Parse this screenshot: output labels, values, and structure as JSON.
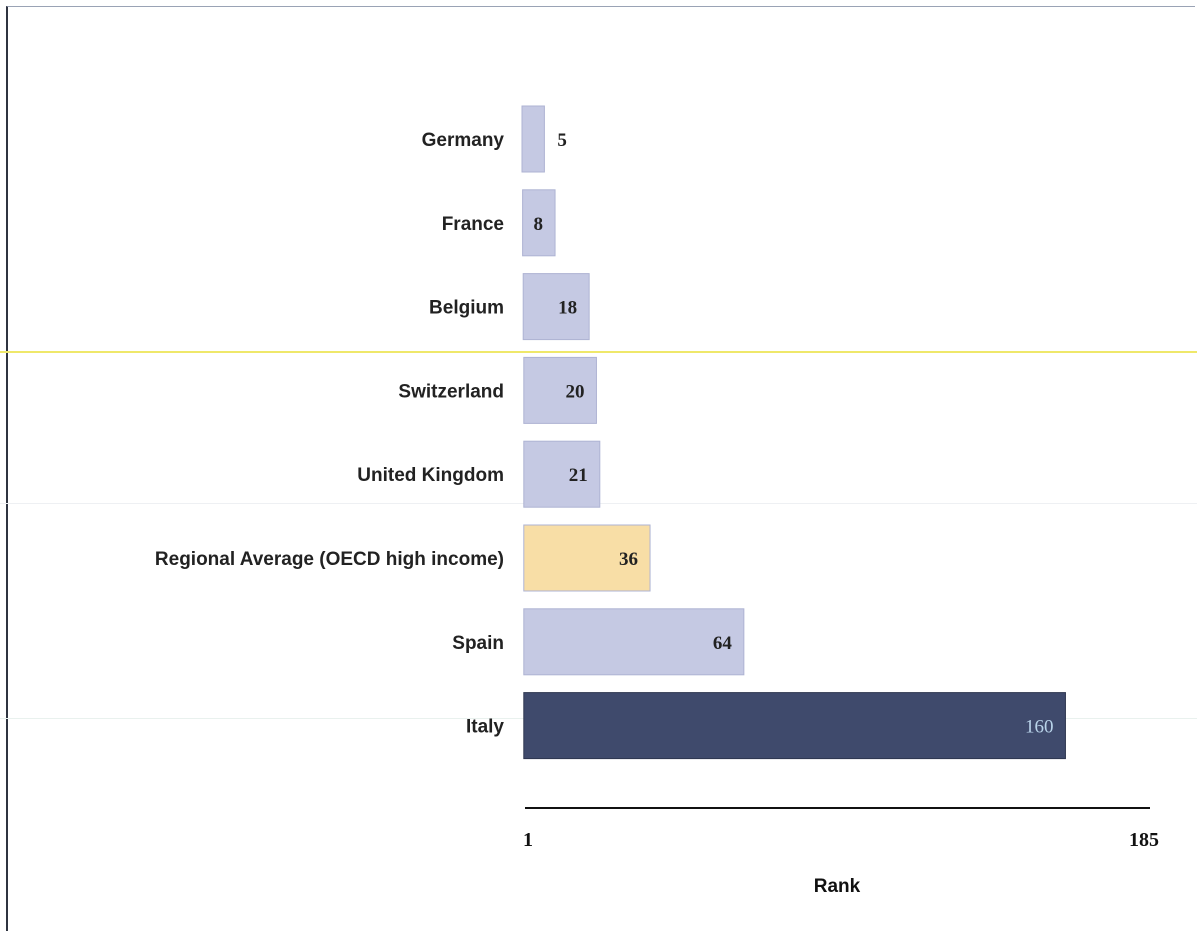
{
  "chart_data": {
    "type": "bar",
    "orientation": "horizontal",
    "categories": [
      "Germany",
      "France",
      "Belgium",
      "Switzerland",
      "United Kingdom",
      "Regional Average (OECD high income)",
      "Spain",
      "Italy"
    ],
    "values": [
      5,
      8,
      18,
      20,
      21,
      36,
      64,
      160
    ],
    "value_labels": [
      "5",
      "8",
      "18",
      "20",
      "21",
      "36",
      "64",
      "160"
    ],
    "bar_colors": [
      "#c5c9e3",
      "#c5c9e3",
      "#c5c9e3",
      "#c5c9e3",
      "#c5c9e3",
      "#f8dea6",
      "#c5c9e3",
      "#3f4a6c"
    ],
    "xlabel": "Rank",
    "xlim": [
      1,
      185
    ],
    "x_ticks": [
      "1",
      "185"
    ],
    "grid": false,
    "legend": "none"
  }
}
